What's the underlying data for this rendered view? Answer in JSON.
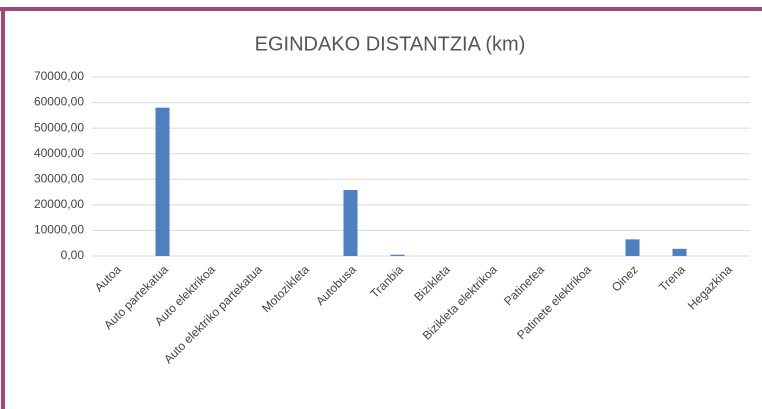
{
  "chart_data": {
    "type": "bar",
    "title": "EGINDAKO DISTANTZIA (km)",
    "categories": [
      "Autoa",
      "Auto partekatua",
      "Auto elektrikoa",
      "Auto elektriko partekatua",
      "Motozikleta",
      "Autobusa",
      "Tranbia",
      "Bizikleta",
      "Bizikleta elektrikoa",
      "Patinetea",
      "Patinete elektrikoa",
      "Oinez",
      "Trena",
      "Hegazkina"
    ],
    "values": [
      0,
      58000,
      0,
      0,
      0,
      25800,
      500,
      0,
      0,
      0,
      0,
      6500,
      2800,
      0
    ],
    "color": "#4e7fc0",
    "ylim": [
      0,
      70000
    ],
    "yticks": [
      {
        "value": 0,
        "label": "0,00"
      },
      {
        "value": 10000,
        "label": "10000,00"
      },
      {
        "value": 20000,
        "label": "20000,00"
      },
      {
        "value": 30000,
        "label": "30000,00"
      },
      {
        "value": 40000,
        "label": "40000,00"
      },
      {
        "value": 50000,
        "label": "50000,00"
      },
      {
        "value": 60000,
        "label": "60000,00"
      },
      {
        "value": 70000,
        "label": "70000,00"
      }
    ],
    "grid": true
  }
}
